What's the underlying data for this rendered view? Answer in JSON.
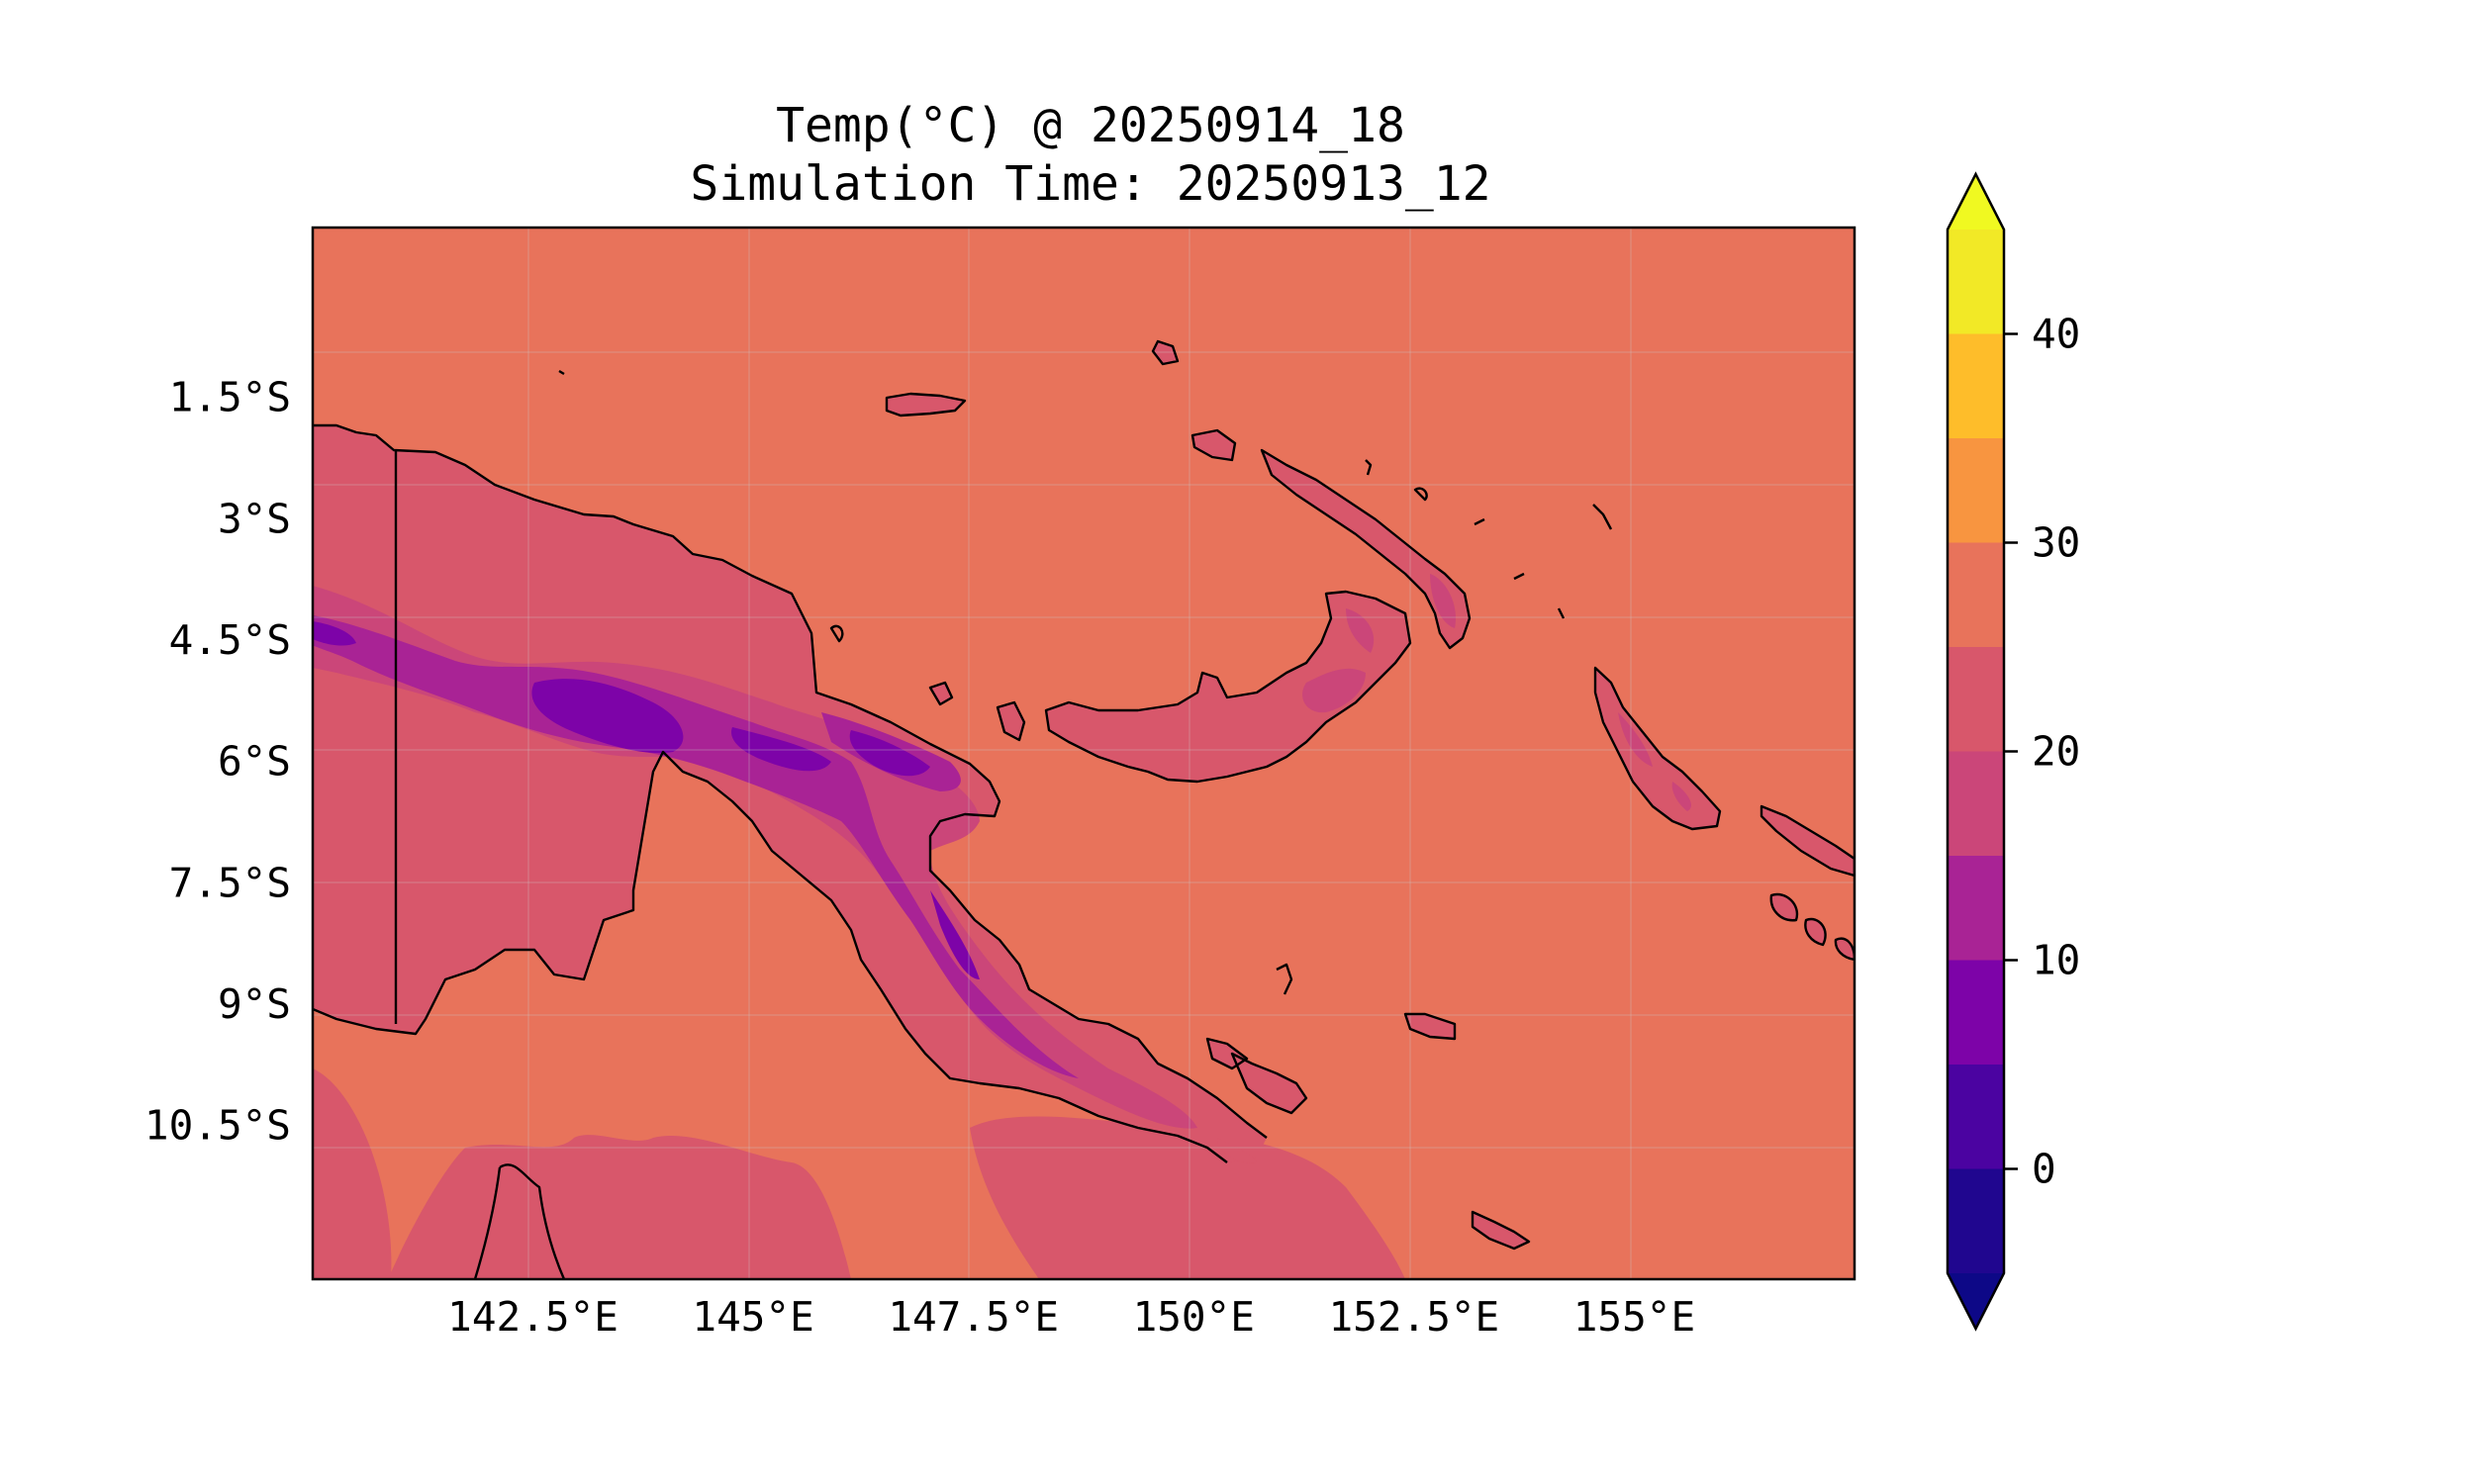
{
  "title": {
    "line1": "Temp(°C) @ 20250914_18",
    "line2": "Simulation Time: 20250913_12"
  },
  "map": {
    "extent": {
      "lon": [
        140,
        157.5
      ],
      "lat": [
        -12.4,
        0.6
      ]
    },
    "gridlines": true,
    "region": "Papua New Guinea",
    "lat_ticks": [
      {
        "value": -1.5,
        "label": "1.5°S"
      },
      {
        "value": -3,
        "label": "3°S"
      },
      {
        "value": -4.5,
        "label": "4.5°S"
      },
      {
        "value": -6,
        "label": "6°S"
      },
      {
        "value": -7.5,
        "label": "7.5°S"
      },
      {
        "value": -9,
        "label": "9°S"
      },
      {
        "value": -10.5,
        "label": "10.5°S"
      }
    ],
    "lon_ticks": [
      {
        "value": 142.5,
        "label": "142.5°E"
      },
      {
        "value": 145,
        "label": "145°E"
      },
      {
        "value": 147.5,
        "label": "147.5°E"
      },
      {
        "value": 150,
        "label": "150°E"
      },
      {
        "value": 152.5,
        "label": "152.5°E"
      },
      {
        "value": 155,
        "label": "155°E"
      }
    ]
  },
  "colorbar": {
    "levels": [
      -5,
      0,
      5,
      10,
      15,
      20,
      25,
      30,
      35,
      40,
      45
    ],
    "colors": [
      "#20068f",
      "#4b03a1",
      "#7d03a8",
      "#a92395",
      "#cb4679",
      "#d8576b",
      "#e8735b",
      "#f89540",
      "#febd2a",
      "#f2e926"
    ],
    "under_color": "#0d0887",
    "over_color": "#f0f921",
    "extend": "both",
    "ticks": [
      {
        "value": 0,
        "label": "0"
      },
      {
        "value": 10,
        "label": "10"
      },
      {
        "value": 20,
        "label": "20"
      },
      {
        "value": 30,
        "label": "30"
      },
      {
        "value": 40,
        "label": "40"
      }
    ]
  }
}
